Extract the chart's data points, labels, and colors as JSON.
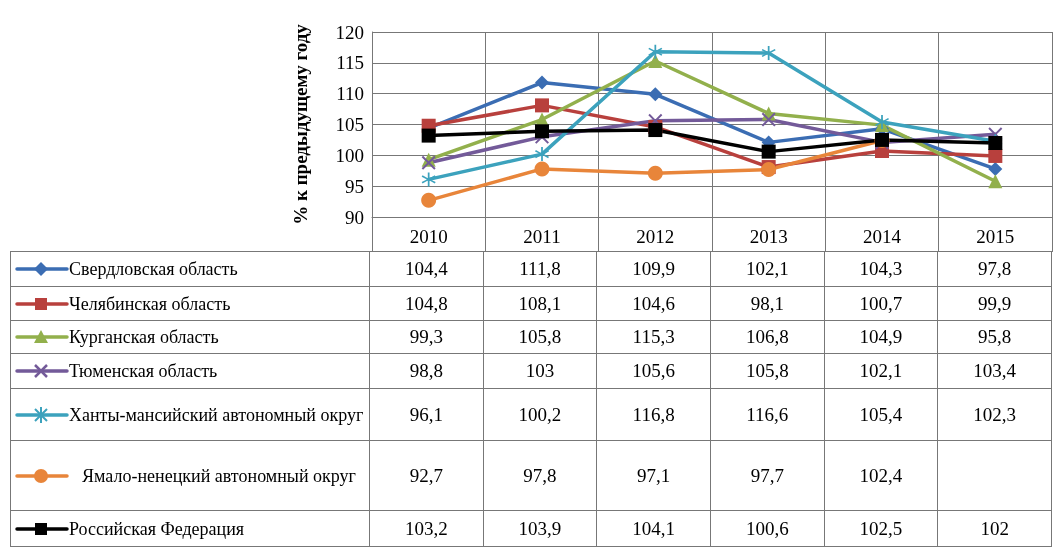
{
  "chart_data": {
    "type": "line",
    "ylabel": "% к предыдущему году",
    "categories": [
      "2010",
      "2011",
      "2012",
      "2013",
      "2014",
      "2015"
    ],
    "ylim": [
      90,
      120
    ],
    "yticks": [
      90,
      95,
      100,
      105,
      110,
      115,
      120
    ],
    "grid": true,
    "legend": "bottom",
    "line_style": "solid",
    "series": [
      {
        "name": "Свердловская область",
        "color": "#3b6db3",
        "marker": "diamond",
        "values": [
          104.4,
          111.8,
          109.9,
          102.1,
          104.3,
          97.8
        ],
        "value_labels": [
          "104,4",
          "111,8",
          "109,9",
          "102,1",
          "104,3",
          "97,8"
        ]
      },
      {
        "name": "Челябинская область",
        "color": "#b8403d",
        "marker": "square",
        "values": [
          104.8,
          108.1,
          104.6,
          98.1,
          100.7,
          99.9
        ],
        "value_labels": [
          "104,8",
          "108,1",
          "104,6",
          "98,1",
          "100,7",
          "99,9"
        ]
      },
      {
        "name": "Курганская область",
        "color": "#92b04c",
        "marker": "triangle",
        "values": [
          99.3,
          105.8,
          115.3,
          106.8,
          104.9,
          95.8
        ],
        "value_labels": [
          "99,3",
          "105,8",
          "115,3",
          "106,8",
          "104,9",
          "95,8"
        ]
      },
      {
        "name": "Тюменская область",
        "color": "#735a99",
        "marker": "cross",
        "values": [
          98.8,
          103,
          105.6,
          105.8,
          102.1,
          103.4
        ],
        "value_labels": [
          "98,8",
          "103",
          "105,6",
          "105,8",
          "102,1",
          "103,4"
        ]
      },
      {
        "name": "Ханты-мансийский автономный округ",
        "color": "#3ca2bd",
        "marker": "star",
        "values": [
          96.1,
          100.2,
          116.8,
          116.6,
          105.4,
          102.3
        ],
        "value_labels": [
          "96,1",
          "100,2",
          "116,8",
          "116,6",
          "105,4",
          "102,3"
        ]
      },
      {
        "name": "Ямало-ненецкий автономный округ",
        "color": "#e8853a",
        "marker": "circle",
        "values": [
          92.7,
          97.8,
          97.1,
          97.7,
          102.4,
          null
        ],
        "value_labels": [
          "92,7",
          "97,8",
          "97,1",
          "97,7",
          "102,4",
          null
        ]
      },
      {
        "name": "Российская Федерация",
        "color": "#000000",
        "marker": "square",
        "values": [
          103.2,
          103.9,
          104.1,
          100.6,
          102.5,
          102
        ],
        "value_labels": [
          "103,2",
          "103,9",
          "104,1",
          "100,6",
          "102,5",
          "102"
        ]
      }
    ]
  }
}
